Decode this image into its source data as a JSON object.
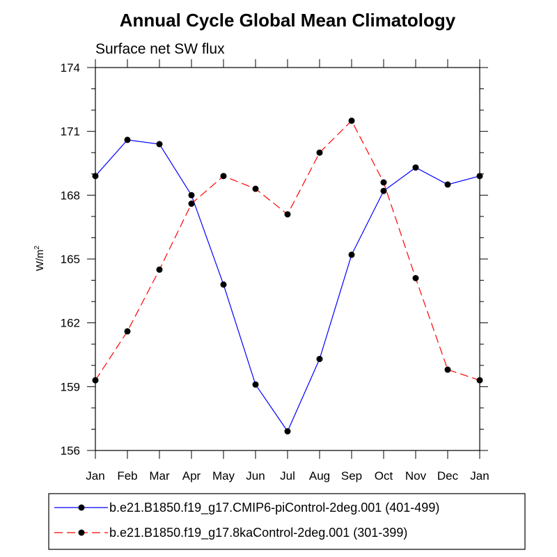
{
  "chart_data": {
    "type": "line",
    "title": "Annual Cycle Global Mean Climatology",
    "subtitle": "Surface net SW flux",
    "ylabel_base": "W/m",
    "ylabel_sup": "2",
    "xlabel": "",
    "categories": [
      "Jan",
      "Feb",
      "Mar",
      "Apr",
      "May",
      "Jun",
      "Jul",
      "Aug",
      "Sep",
      "Oct",
      "Nov",
      "Dec",
      "Jan"
    ],
    "ylim": [
      156,
      174
    ],
    "yticks": [
      156,
      159,
      162,
      165,
      168,
      171,
      174
    ],
    "yticks_minor": [
      157,
      158,
      160,
      161,
      163,
      164,
      166,
      167,
      169,
      170,
      172,
      173
    ],
    "grid": false,
    "legend_position": "bottom",
    "series": [
      {
        "name": "b.e21.B1850.f19_g17.CMIP6-piControl-2deg.001 (401-499)",
        "color": "#0000ff",
        "dash": "solid",
        "marker": "filled-circle",
        "values": [
          168.9,
          170.6,
          170.4,
          168.0,
          163.8,
          159.1,
          156.9,
          160.3,
          165.2,
          168.2,
          169.3,
          168.5,
          168.9
        ]
      },
      {
        "name": "b.e21.B1850.f19_g17.8kaControl-2deg.001 (301-399)",
        "color": "#ff0000",
        "dash": "dashed",
        "marker": "filled-circle",
        "values": [
          159.3,
          161.6,
          164.5,
          167.6,
          168.9,
          168.3,
          167.1,
          170.0,
          171.5,
          168.6,
          164.1,
          159.8,
          159.3
        ]
      }
    ]
  }
}
